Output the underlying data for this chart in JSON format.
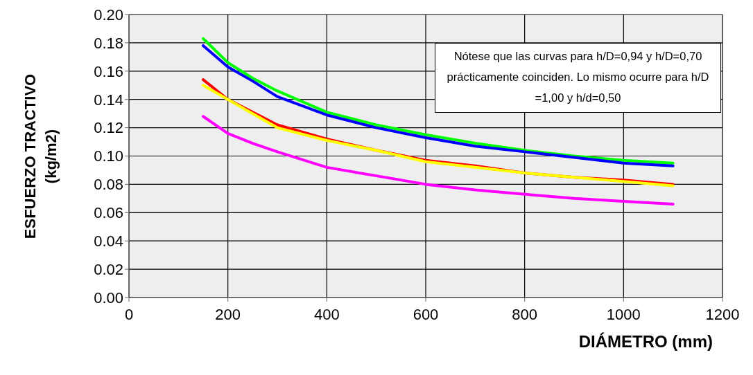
{
  "chart_data": {
    "type": "line",
    "xlabel": "DIÁMETRO (mm)",
    "ylabel": "ESFUERZO TRACTIVO\n(kg/m2)",
    "x": [
      150,
      200,
      250,
      300,
      400,
      500,
      600,
      700,
      800,
      900,
      1000,
      1100
    ],
    "series": [
      {
        "color": "#00ff00",
        "values": [
          0.183,
          0.166,
          0.155,
          0.146,
          0.131,
          0.122,
          0.115,
          0.109,
          0.104,
          0.1,
          0.097,
          0.095
        ]
      },
      {
        "color": "#0000ff",
        "values": [
          0.178,
          0.163,
          0.153,
          0.142,
          0.129,
          0.12,
          0.113,
          0.107,
          0.103,
          0.099,
          0.095,
          0.093
        ]
      },
      {
        "color": "#ff0000",
        "values": [
          0.154,
          0.14,
          0.131,
          0.122,
          0.112,
          0.104,
          0.097,
          0.093,
          0.088,
          0.085,
          0.083,
          0.08
        ]
      },
      {
        "color": "#ffff00",
        "values": [
          0.15,
          0.14,
          0.13,
          0.12,
          0.111,
          0.104,
          0.096,
          0.092,
          0.088,
          0.085,
          0.082,
          0.079
        ]
      },
      {
        "color": "#ff00ff",
        "values": [
          0.128,
          0.116,
          0.109,
          0.103,
          0.092,
          0.086,
          0.08,
          0.076,
          0.073,
          0.07,
          0.068,
          0.066
        ]
      }
    ],
    "xlim": [
      0,
      1200
    ],
    "xticks": [
      0,
      200,
      400,
      600,
      800,
      1000,
      1200
    ],
    "ylim": [
      0,
      0.2
    ],
    "yticks": [
      {
        "value": 0,
        "label": "0.00"
      },
      {
        "value": 0.02,
        "label": "0.02"
      },
      {
        "value": 0.04,
        "label": "0.04"
      },
      {
        "value": 0.06,
        "label": "0.06"
      },
      {
        "value": 0.08,
        "label": "0.08"
      },
      {
        "value": 0.1,
        "label": "0.10"
      },
      {
        "value": 0.12,
        "label": "0.12"
      },
      {
        "value": 0.14,
        "label": "0.14"
      },
      {
        "value": 0.16,
        "label": "0.16"
      },
      {
        "value": 0.18,
        "label": "0.18"
      },
      {
        "value": 0.2,
        "label": "0.20"
      }
    ],
    "grid": true,
    "marker": "none",
    "line_style": "solid",
    "annotations": [
      "Nótese que las curvas para h/D=0,94 y h/D=0,70 prácticamente coinciden. Lo mismo ocurre para h/D =1,00 y h/d=0,50"
    ]
  }
}
